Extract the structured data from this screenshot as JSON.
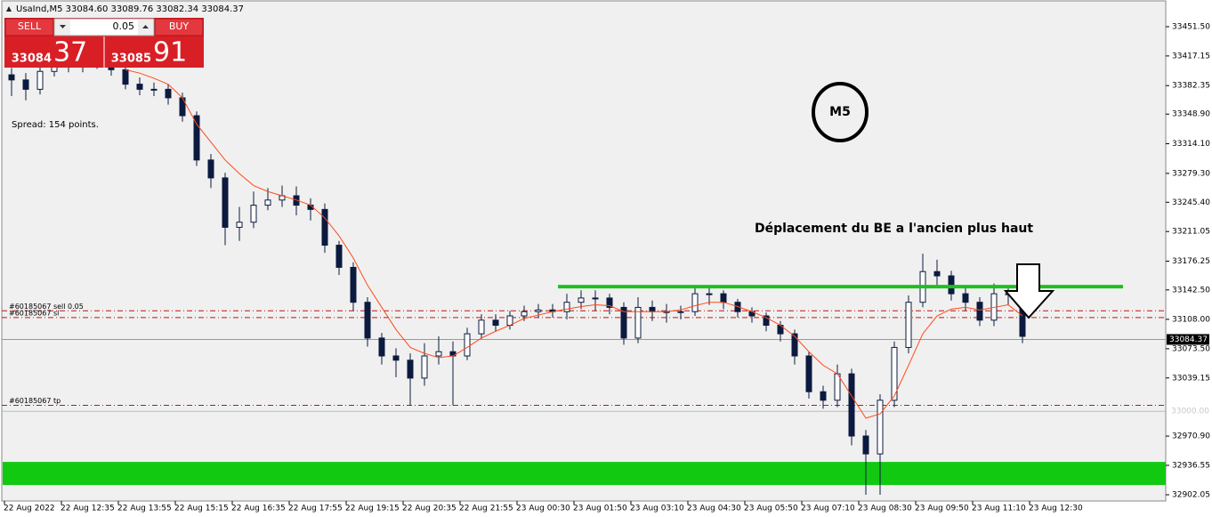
{
  "header": "UsaInd,M5  33084.60 33089.76 33082.34 33084.37",
  "panel": {
    "sell": "SELL",
    "buy": "BUY",
    "lot": "0.05",
    "sell_big": "33084",
    "sell_small": "37",
    "buy_big": "33085",
    "buy_small": "91"
  },
  "spread": "Spread: 154 points.",
  "chart_data": {
    "type": "candlestick",
    "badge": "M5",
    "annotation": "Déplacement du BE a l'ancien plus haut",
    "xlabels": [
      "22 Aug 2022",
      "22 Aug 12:35",
      "22 Aug 13:55",
      "22 Aug 15:15",
      "22 Aug 16:35",
      "22 Aug 17:55",
      "22 Aug 19:15",
      "22 Aug 20:35",
      "22 Aug 21:55",
      "23 Aug 00:30",
      "23 Aug 01:50",
      "23 Aug 03:10",
      "23 Aug 04:30",
      "23 Aug 05:50",
      "23 Aug 07:10",
      "23 Aug 08:30",
      "23 Aug 09:50",
      "23 Aug 11:10",
      "23 Aug 12:30"
    ],
    "open": [
      33395,
      33389,
      33378,
      33399,
      33410,
      33404,
      33410,
      33410,
      33401,
      33384,
      33378,
      33378,
      33368,
      33347,
      33295,
      33274,
      33216,
      33222,
      33242,
      33248,
      33253,
      33242,
      33237,
      33195,
      33169,
      33128,
      33086,
      33065,
      33060,
      33039,
      33065,
      33070,
      33065,
      33091,
      33107,
      33101,
      33112,
      33117,
      33119,
      33117,
      33128,
      33133,
      33133,
      33122,
      33086,
      33122,
      33117,
      33117,
      33117,
      33138,
      33138,
      33128,
      33117,
      33112,
      33101,
      33091,
      33065,
      33023,
      33013,
      33044,
      32971,
      32950,
      33013,
      33075,
      33128,
      33164,
      33159,
      33138,
      33128,
      33107,
      33138,
      33138
    ],
    "high": [
      33403,
      33397,
      33407,
      33418,
      33416,
      33418,
      33417,
      33416,
      33408,
      33392,
      33386,
      33384,
      33374,
      33352,
      33302,
      33280,
      33240,
      33258,
      33262,
      33265,
      33264,
      33250,
      33244,
      33200,
      33175,
      33134,
      33092,
      33074,
      33068,
      33080,
      33088,
      33082,
      33098,
      33114,
      33114,
      33118,
      33124,
      33126,
      33126,
      33138,
      33142,
      33142,
      33138,
      33128,
      33134,
      33130,
      33126,
      33124,
      33148,
      33146,
      33142,
      33132,
      33122,
      33116,
      33106,
      33096,
      33070,
      33030,
      33055,
      33050,
      32978,
      33020,
      33082,
      33136,
      33185,
      33178,
      33165,
      33145,
      33134,
      33150,
      33146,
      33142
    ],
    "low": [
      33370,
      33365,
      33372,
      33393,
      33398,
      33398,
      33402,
      33394,
      33378,
      33371,
      33370,
      33360,
      33340,
      33288,
      33262,
      33195,
      33200,
      33215,
      33236,
      33240,
      33230,
      33224,
      33186,
      33160,
      33118,
      33076,
      33055,
      33040,
      33007,
      33030,
      33055,
      33007,
      33060,
      33085,
      33094,
      33096,
      33106,
      33110,
      33110,
      33108,
      33120,
      33118,
      33114,
      33078,
      33080,
      33106,
      33104,
      33108,
      33112,
      33125,
      33120,
      33110,
      33104,
      33094,
      33082,
      33055,
      33015,
      33003,
      33005,
      32960,
      32902,
      32902,
      33005,
      33068,
      33122,
      33148,
      33130,
      33118,
      33100,
      33100,
      33125,
      33080
    ],
    "close": [
      33389,
      33378,
      33399,
      33410,
      33404,
      33410,
      33410,
      33401,
      33384,
      33378,
      33378,
      33368,
      33347,
      33295,
      33274,
      33216,
      33222,
      33242,
      33248,
      33253,
      33242,
      33237,
      33195,
      33169,
      33128,
      33086,
      33065,
      33060,
      33039,
      33065,
      33070,
      33065,
      33091,
      33107,
      33101,
      33112,
      33117,
      33119,
      33117,
      33128,
      33133,
      33133,
      33122,
      33086,
      33122,
      33117,
      33117,
      33117,
      33138,
      33138,
      33128,
      33117,
      33112,
      33101,
      33091,
      33065,
      33023,
      33013,
      33044,
      32971,
      32950,
      33013,
      33075,
      33128,
      33164,
      33159,
      33138,
      33128,
      33107,
      33138,
      33138,
      33088
    ],
    "ma": {
      "color": "#ff4a1a",
      "values": [
        null,
        null,
        null,
        null,
        null,
        null,
        null,
        null,
        33401,
        33397,
        33391,
        33384,
        33368,
        33337,
        33316,
        33295,
        33279,
        33265,
        33258,
        33253,
        33248,
        33242,
        33227,
        33206,
        33180,
        33148,
        33122,
        33096,
        33075,
        33068,
        33063,
        33065,
        33075,
        33086,
        33094,
        33101,
        33109,
        33113,
        33117,
        33120,
        33123,
        33125,
        33124,
        33117,
        33117,
        33117,
        33117,
        33119,
        33124,
        33128,
        33128,
        33123,
        33117,
        33110,
        33101,
        33088,
        33070,
        33054,
        33044,
        33018,
        32992,
        32997,
        33018,
        33054,
        33091,
        33112,
        33120,
        33122,
        33119,
        33122,
        33125,
        33112
      ]
    },
    "ylim": [
      32894.74,
      33482.83
    ],
    "yticks": [
      {
        "value": 33451.5,
        "label": "33451.50"
      },
      {
        "value": 33417.15,
        "label": "33417.15"
      },
      {
        "value": 33382.35,
        "label": "33382.35"
      },
      {
        "value": 33348.9,
        "label": "33348.90"
      },
      {
        "value": 33314.1,
        "label": "33314.10"
      },
      {
        "value": 33279.3,
        "label": "33279.30"
      },
      {
        "value": 33245.4,
        "label": "33245.40"
      },
      {
        "value": 33211.05,
        "label": "33211.05"
      },
      {
        "value": 33176.25,
        "label": "33176.25"
      },
      {
        "value": 33142.5,
        "label": "33142.50"
      },
      {
        "value": 33108,
        "label": "33108.00"
      },
      {
        "value": 33073.5,
        "label": "33073.50"
      },
      {
        "value": 33039.15,
        "label": "33039.15"
      },
      {
        "value": 32970.9,
        "label": "32970.90"
      },
      {
        "value": 32936.55,
        "label": "32936.55"
      },
      {
        "value": 32902.05,
        "label": "32902.05"
      }
    ],
    "price_line": {
      "value": 33084.37,
      "label": "33084.37"
    },
    "round_level": {
      "value": 33000,
      "label": "33000.00"
    },
    "orders": [
      {
        "label": "#60185067 sell 0.05",
        "value": 33118
      },
      {
        "label": "#60185067 sl",
        "value": 33110
      },
      {
        "label": "#60185067 tp",
        "value": 33007
      }
    ],
    "level_line": {
      "value": 33146.4,
      "color": "#1fbf1f"
    },
    "zone": {
      "values": [
        32913.5,
        32940.6
      ],
      "color": "#12c912"
    },
    "candle_color": "#0b1a3e"
  }
}
